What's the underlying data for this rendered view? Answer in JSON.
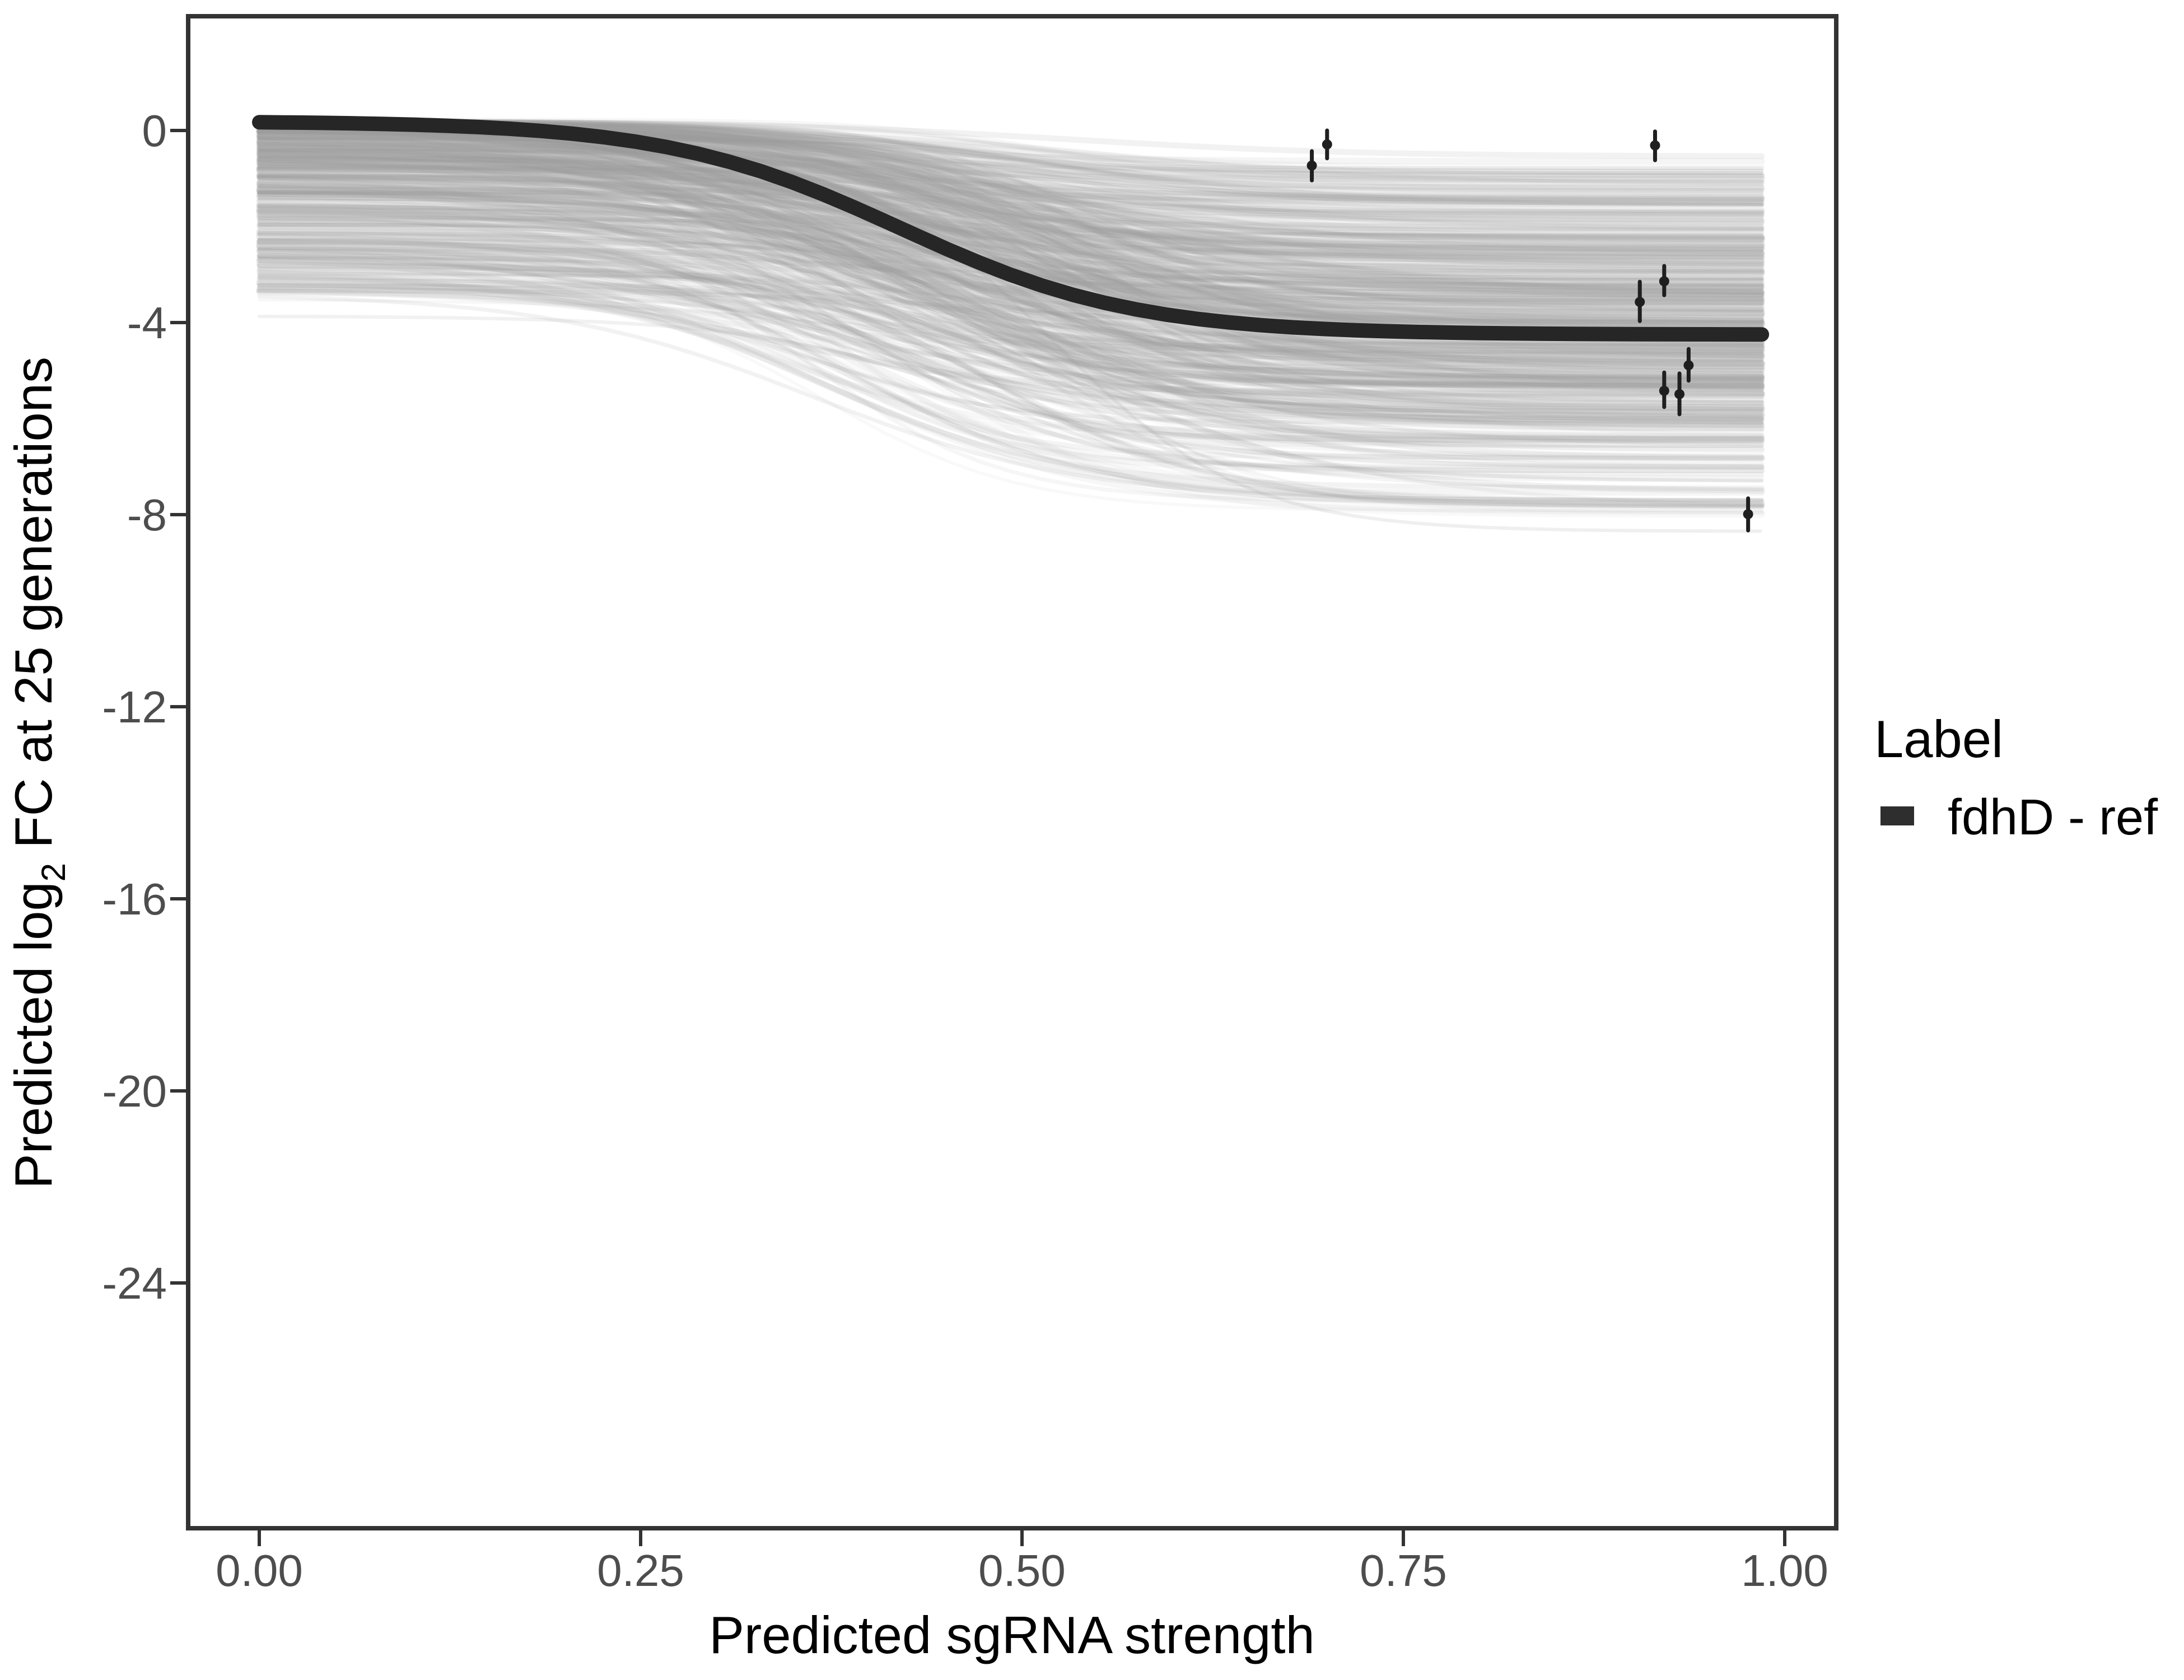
{
  "figure": {
    "background": "#ffffff"
  },
  "colors": {
    "frame": "#333333",
    "tick_mark": "#333333",
    "tick_label": "#4d4d4d",
    "axis_title": "#000000",
    "reference_curve": "#262626",
    "point": "#1f1f1f",
    "ensemble_stroke": "#9e9e9e",
    "outlier_stroke": "#999999",
    "legend_swatch": "#2e2e2e",
    "background": "#ffffff"
  },
  "chart_data": {
    "type": "line",
    "title": "",
    "x_axis": {
      "label": "Predicted sgRNA strength",
      "tick_values": [
        0,
        0.25,
        0.5,
        0.75,
        1.0
      ],
      "tick_labels": [
        "0.00",
        "0.25",
        "0.50",
        "0.75",
        "1.00"
      ],
      "range": [
        -0.05,
        1.05
      ],
      "grid": false
    },
    "y_axis": {
      "label_prefix": "Predicted log",
      "label_sub": "2",
      "label_suffix": " FC at 25 generations",
      "tick_values": [
        0,
        -4,
        -8,
        -12,
        -16,
        -20,
        -24
      ],
      "tick_labels": [
        "0",
        "-4",
        "-8",
        "-12",
        "-16",
        "-20",
        "-24"
      ],
      "range": [
        -29.1,
        2.4
      ],
      "grid": false
    },
    "legend": {
      "title": "Label",
      "position": "right",
      "items": [
        {
          "label": "fdhD - ref",
          "color": "#2e2e2e"
        }
      ]
    },
    "reference_curve": {
      "label": "fdhD - ref",
      "model": "sigmoid",
      "y_start": 0.19,
      "y_end": -4.25,
      "midpoint": 0.42,
      "steepness": 13,
      "x_start": 0,
      "x_end": 0.985,
      "stroke_width": 26
    },
    "posterior_ensemble": {
      "description": "translucent gray posterior-draw sigmoid curves",
      "count": 520,
      "seed": 11,
      "x_start": 0,
      "x_end": 0.985,
      "top_base": 0.2,
      "top_spread": 3.6,
      "deep_fraction": 0.06,
      "deep_extra": 0.9,
      "drop_min": 0.7,
      "drop_max": 5.7,
      "floor": -7.7,
      "mid_min": 0.33,
      "mid_max": 0.55,
      "steep_min": 9,
      "steep_max": 17,
      "width_min": 5,
      "width_max": 12,
      "opacity_min": 0.055,
      "opacity_max": 0.155
    },
    "outlier_curve": {
      "y_start": -0.4,
      "y_end": -8.35,
      "midpoint": 0.52,
      "steepness": 16,
      "opacity": 0.16,
      "width": 6
    },
    "points": [
      {
        "x": 0.69,
        "y": -0.73,
        "ymin": -1.04,
        "ymax": -0.43
      },
      {
        "x": 0.7,
        "y": -0.29,
        "ymin": -0.58,
        "ymax": 0.0
      },
      {
        "x": 0.905,
        "y": -3.57,
        "ymin": -3.97,
        "ymax": -3.15
      },
      {
        "x": 0.915,
        "y": -0.31,
        "ymin": -0.62,
        "ymax": -0.02
      },
      {
        "x": 0.921,
        "y": -3.14,
        "ymin": -3.43,
        "ymax": -2.82
      },
      {
        "x": 0.921,
        "y": -5.42,
        "ymin": -5.76,
        "ymax": -5.04
      },
      {
        "x": 0.931,
        "y": -5.49,
        "ymin": -5.91,
        "ymax": -5.06
      },
      {
        "x": 0.937,
        "y": -4.89,
        "ymin": -5.21,
        "ymax": -4.55
      },
      {
        "x": 0.976,
        "y": -7.99,
        "ymin": -8.33,
        "ymax": -7.66
      }
    ]
  }
}
